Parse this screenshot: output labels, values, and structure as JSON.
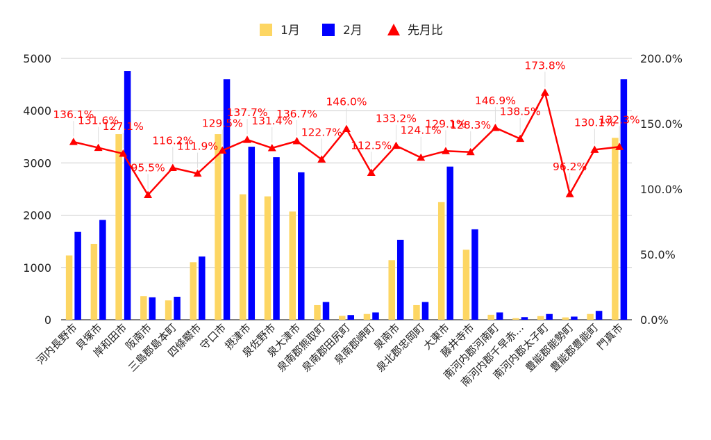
{
  "chart_data": {
    "type": "bar",
    "categories": [
      "河内長野市",
      "貝塚市",
      "岸和田市",
      "阪南市",
      "三島郡島本町",
      "四條畷市",
      "守口市",
      "摂津市",
      "泉佐野市",
      "泉大津市",
      "泉南郡熊取町",
      "泉南郡田尻町",
      "泉南郡岬町",
      "泉南市",
      "泉北郡忠岡町",
      "大東市",
      "藤井寺市",
      "南河内郡河南町",
      "南河内郡千早赤…",
      "南河内郡太子町",
      "豊能郡能勢町",
      "豊能郡豊能町",
      "門真市"
    ],
    "series": [
      {
        "name": "1月",
        "color": "#fdd663",
        "axis": "left",
        "kind": "bar",
        "values": [
          1230,
          1450,
          3550,
          450,
          370,
          1100,
          3550,
          2400,
          2360,
          2070,
          280,
          75,
          110,
          1140,
          280,
          2250,
          1340,
          95,
          30,
          70,
          45,
          110,
          3480
        ]
      },
      {
        "name": "2月",
        "color": "#0000ff",
        "axis": "left",
        "kind": "bar",
        "values": [
          1680,
          1910,
          4760,
          430,
          440,
          1210,
          4600,
          3310,
          3110,
          2820,
          340,
          90,
          140,
          1530,
          340,
          2930,
          1730,
          140,
          50,
          110,
          60,
          170,
          4600
        ]
      },
      {
        "name": "先月比",
        "color": "#ff0000",
        "axis": "right",
        "kind": "line",
        "marker": "triangle",
        "values": [
          136.1,
          131.6,
          127.1,
          95.5,
          116.2,
          111.9,
          129.5,
          137.7,
          131.4,
          136.7,
          122.7,
          146.0,
          112.5,
          133.2,
          124.1,
          129.1,
          128.3,
          146.9,
          138.5,
          173.8,
          96.2,
          130.1,
          132.3
        ],
        "labels": [
          "136.1%",
          "131.6%",
          "127.1%",
          "95.5%",
          "116.2%",
          "111.9%",
          "129.5%",
          "137.7%",
          "131.4%",
          "136.7%",
          "122.7%",
          "146.0%",
          "112.5%",
          "133.2%",
          "124.1%",
          "129.1%",
          "128.3%",
          "146.9%",
          "138.5%",
          "173.8%",
          "96.2%",
          "130.1%",
          "132.3%"
        ]
      }
    ],
    "ylim_left": [
      0,
      5000
    ],
    "yticks_left": [
      "0",
      "1000",
      "2000",
      "3000",
      "4000",
      "5000"
    ],
    "ylim_right": [
      0,
      200
    ],
    "yticks_right": [
      "0.0%",
      "50.0%",
      "100.0%",
      "150.0%",
      "200.0%"
    ],
    "legend_position": "top",
    "grid": true,
    "grid_color": "#cccccc"
  }
}
